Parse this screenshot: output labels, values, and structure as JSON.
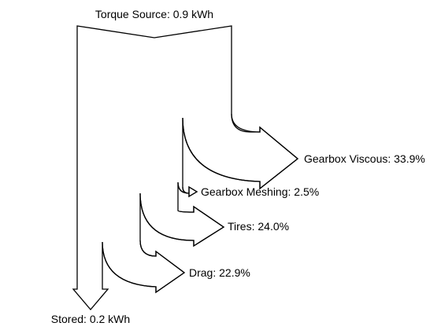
{
  "source": {
    "label": "Torque Source: 0.9 kWh"
  },
  "outputs": [
    {
      "label": "Gearbox Viscous: 33.9%"
    },
    {
      "label": "Gearbox Meshing: 2.5%"
    },
    {
      "label": "Tires: 24.0%"
    },
    {
      "label": "Drag: 22.9%"
    },
    {
      "label": "Stored: 0.2 kWh"
    }
  ]
}
